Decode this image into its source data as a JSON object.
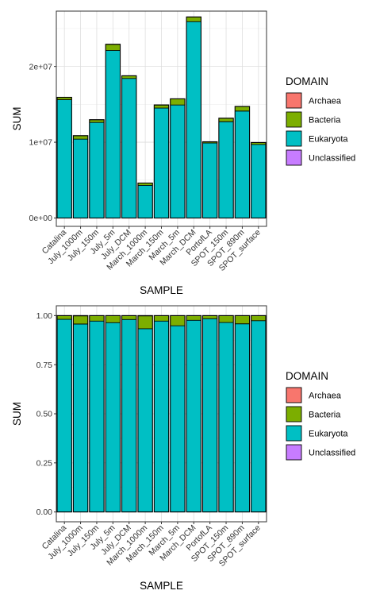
{
  "chart_data": [
    {
      "type": "bar",
      "stacked": true,
      "position": "stack",
      "xlabel": "SAMPLE",
      "ylabel": "SUM",
      "ylim": [
        -1100000,
        27300000
      ],
      "yticks": [
        0,
        10000000,
        20000000
      ],
      "ytick_labels": [
        "0e+00",
        "1e+07",
        "2e+07"
      ],
      "grid": true,
      "categories": [
        "Catalina",
        "July_1000m",
        "July_150m",
        "July_5m",
        "July_DCM",
        "March_1000m",
        "March_150m",
        "March_5m",
        "March_DCM",
        "PortofLA",
        "SPOT_150m",
        "SPOT_890m",
        "SPOT_surface"
      ],
      "series": [
        {
          "name": "Archaea",
          "color": "#F8766D",
          "values": [
            20000,
            15000,
            15000,
            20000,
            15000,
            10000,
            15000,
            20000,
            25000,
            10000,
            15000,
            15000,
            10000
          ]
        },
        {
          "name": "Bacteria",
          "color": "#7CAE00",
          "values": [
            300000,
            450000,
            350000,
            800000,
            350000,
            300000,
            400000,
            800000,
            600000,
            150000,
            450000,
            600000,
            250000
          ]
        },
        {
          "name": "Eukaryota",
          "color": "#00BFC4",
          "values": [
            15600000,
            10400000,
            12600000,
            22100000,
            18400000,
            4300000,
            14500000,
            14900000,
            25900000,
            9900000,
            12700000,
            14100000,
            9700000
          ]
        },
        {
          "name": "Unclassified",
          "color": "#C77CFF",
          "values": [
            10000,
            8000,
            8000,
            10000,
            8000,
            5000,
            8000,
            10000,
            10000,
            5000,
            8000,
            8000,
            5000
          ]
        }
      ],
      "legend": {
        "title": "DOMAIN",
        "placement": "right"
      }
    },
    {
      "type": "bar",
      "stacked": true,
      "position": "fill",
      "xlabel": "SAMPLE",
      "ylabel": "SUM",
      "ylim": [
        -0.05,
        1.05
      ],
      "yticks": [
        0,
        0.25,
        0.5,
        0.75,
        1.0
      ],
      "ytick_labels": [
        "0.00",
        "0.25",
        "0.50",
        "0.75",
        "1.00"
      ],
      "grid": true,
      "categories": [
        "Catalina",
        "July_1000m",
        "July_150m",
        "July_5m",
        "July_DCM",
        "March_1000m",
        "March_150m",
        "March_5m",
        "March_DCM",
        "PortofLA",
        "SPOT_150m",
        "SPOT_890m",
        "SPOT_surface"
      ],
      "series": [
        {
          "name": "Archaea",
          "color": "#F8766D",
          "values": [
            0.001,
            0.002,
            0.001,
            0.001,
            0.001,
            0.002,
            0.001,
            0.001,
            0.001,
            0.001,
            0.001,
            0.001,
            0.001
          ]
        },
        {
          "name": "Bacteria",
          "color": "#7CAE00",
          "values": [
            0.018,
            0.041,
            0.027,
            0.035,
            0.019,
            0.065,
            0.027,
            0.051,
            0.023,
            0.015,
            0.034,
            0.041,
            0.025
          ]
        },
        {
          "name": "Eukaryota",
          "color": "#00BFC4",
          "values": [
            0.98,
            0.956,
            0.971,
            0.963,
            0.979,
            0.932,
            0.971,
            0.947,
            0.975,
            0.983,
            0.964,
            0.957,
            0.973
          ]
        },
        {
          "name": "Unclassified",
          "color": "#C77CFF",
          "values": [
            0.001,
            0.001,
            0.001,
            0.001,
            0.001,
            0.001,
            0.001,
            0.001,
            0.001,
            0.001,
            0.001,
            0.001,
            0.001
          ]
        }
      ],
      "legend": {
        "title": "DOMAIN",
        "placement": "right"
      }
    }
  ]
}
